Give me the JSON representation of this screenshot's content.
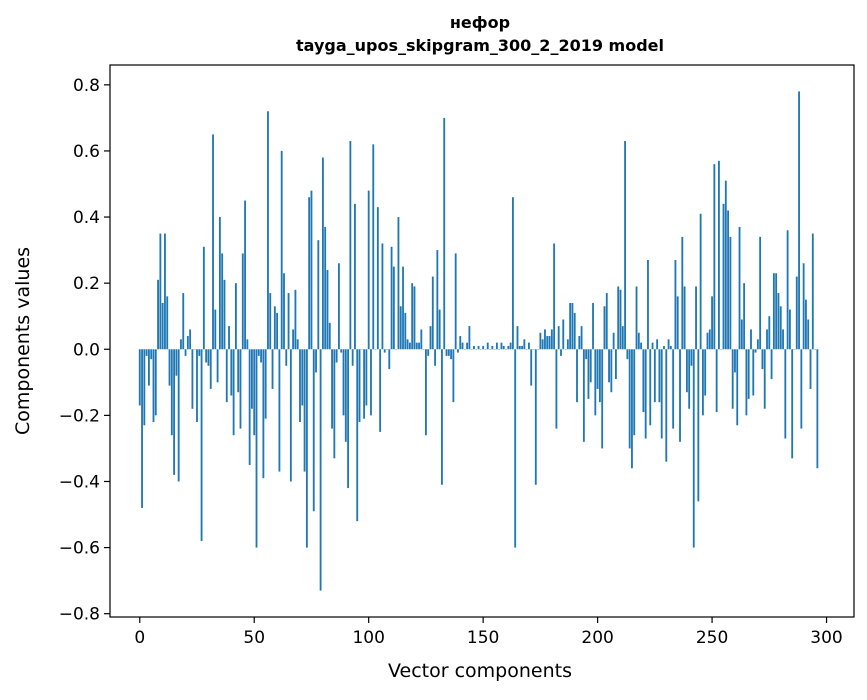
{
  "chart_data": {
    "type": "bar",
    "title": "нефор",
    "subtitle": "tayga_upos_skipgram_300_2_2019 model",
    "xlabel": "Vector components",
    "ylabel": "Components values",
    "xlim": [
      -13,
      312
    ],
    "ylim": [
      -0.81,
      0.86
    ],
    "xticks": [
      0,
      50,
      100,
      150,
      200,
      250,
      300
    ],
    "xtick_labels": [
      "0",
      "50",
      "100",
      "150",
      "200",
      "250",
      "300"
    ],
    "yticks": [
      -0.8,
      -0.6,
      -0.4,
      -0.2,
      0.0,
      0.2,
      0.4,
      0.6,
      0.8
    ],
    "ytick_labels": [
      "−0.8",
      "−0.6",
      "−0.4",
      "−0.2",
      "0.0",
      "0.2",
      "0.4",
      "0.6",
      "0.8"
    ],
    "bar_color": "#1f77b4",
    "x_start": 0,
    "values": [
      -0.17,
      -0.48,
      -0.23,
      -0.02,
      -0.11,
      -0.03,
      -0.22,
      -0.2,
      0.21,
      0.35,
      0.14,
      0.35,
      0.16,
      -0.11,
      -0.26,
      -0.38,
      -0.08,
      -0.4,
      0.03,
      0.17,
      -0.02,
      0.04,
      0.06,
      -0.18,
      0.0,
      -0.22,
      -0.02,
      -0.58,
      0.31,
      -0.04,
      -0.05,
      -0.12,
      0.65,
      0.12,
      -0.1,
      0.4,
      0.29,
      0.21,
      -0.16,
      0.07,
      -0.14,
      -0.26,
      0.2,
      -0.13,
      -0.24,
      0.29,
      0.45,
      0.03,
      -0.35,
      -0.18,
      -0.26,
      -0.6,
      -0.02,
      -0.04,
      -0.39,
      -0.21,
      0.72,
      0.17,
      -0.12,
      0.13,
      0.11,
      -0.37,
      0.6,
      0.23,
      -0.05,
      0.17,
      -0.4,
      0.06,
      0.18,
      0.03,
      -0.22,
      -0.17,
      -0.37,
      -0.6,
      0.46,
      0.48,
      -0.49,
      -0.07,
      0.33,
      -0.73,
      0.58,
      0.37,
      0.24,
      0.08,
      -0.24,
      -0.33,
      -0.04,
      0.26,
      -0.01,
      -0.2,
      -0.28,
      -0.42,
      0.63,
      -0.05,
      0.44,
      -0.52,
      -0.22,
      0.0,
      -0.21,
      -0.17,
      0.48,
      -0.2,
      0.62,
      0.0,
      0.43,
      -0.25,
      0.32,
      -0.01,
      0.0,
      -0.06,
      0.31,
      0.25,
      0.0,
      0.4,
      0.13,
      0.25,
      0.11,
      0.03,
      0.02,
      0.2,
      0.19,
      0.02,
      0.02,
      0.06,
      0.0,
      -0.26,
      -0.02,
      0.07,
      0.22,
      -0.05,
      0.3,
      0.12,
      -0.41,
      0.7,
      -0.02,
      -0.02,
      -0.03,
      -0.16,
      0.29,
      -0.01,
      0.04,
      0.02,
      0.0,
      0.02,
      0.07,
      0.0,
      0.01,
      0.0,
      0.01,
      0.0,
      0.01,
      0.0,
      0.02,
      0.0,
      0.01,
      0.0,
      0.02,
      0.0,
      0.02,
      0.01,
      0.0,
      0.01,
      0.02,
      0.46,
      -0.6,
      0.07,
      0.01,
      0.01,
      0.03,
      0.0,
      0.02,
      -0.11,
      0.0,
      -0.41,
      0.0,
      0.05,
      0.03,
      0.06,
      0.04,
      0.04,
      0.06,
      0.32,
      -0.24,
      0.07,
      -0.02,
      0.09,
      0.0,
      0.03,
      0.14,
      0.14,
      0.11,
      -0.16,
      0.04,
      0.07,
      -0.28,
      -0.03,
      -0.15,
      -0.1,
      0.14,
      -0.2,
      -0.12,
      -0.16,
      -0.3,
      0.13,
      0.17,
      -0.1,
      -0.13,
      0.05,
      -0.09,
      0.19,
      0.18,
      0.07,
      0.63,
      -0.03,
      -0.3,
      -0.36,
      -0.26,
      0.19,
      0.05,
      0.02,
      -0.19,
      -0.27,
      0.27,
      -0.23,
      0.02,
      -0.16,
      0.03,
      -0.16,
      -0.27,
      0.01,
      -0.34,
      0.03,
      0.01,
      -0.24,
      0.27,
      0.16,
      -0.28,
      0.34,
      0.19,
      -0.13,
      -0.18,
      -0.05,
      -0.6,
      0.19,
      -0.46,
      0.41,
      -0.2,
      -0.14,
      0.05,
      0.06,
      0.16,
      0.56,
      -0.19,
      0.57,
      0.0,
      0.44,
      0.51,
      0.42,
      0.34,
      -0.18,
      -0.07,
      -0.23,
      0.37,
      0.09,
      0.2,
      -0.2,
      -0.15,
      0.06,
      -0.14,
      -0.01,
      0.03,
      0.34,
      -0.06,
      -0.18,
      0.06,
      0.1,
      -0.09,
      0.23,
      0.23,
      0.17,
      0.13,
      0.06,
      -0.27,
      0.36,
      0.12,
      -0.33,
      0.0,
      0.22,
      0.78,
      -0.24,
      0.26,
      0.15,
      0.09,
      -0.12,
      0.35,
      0.0,
      -0.36
    ]
  }
}
